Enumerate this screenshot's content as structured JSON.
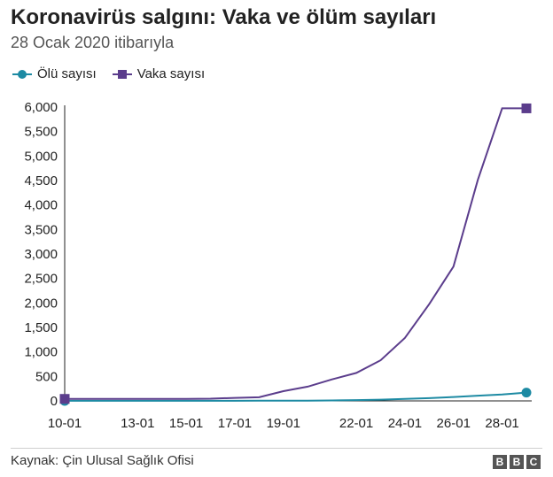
{
  "header": {
    "title": "Koronavirüs salgını: Vaka ve ölüm sayıları",
    "subtitle": "28 Ocak 2020 itibarıyla"
  },
  "footer": {
    "source": "Kaynak: Çin Ulusal Sağlık Ofisi",
    "logo_letters": [
      "B",
      "B",
      "C"
    ]
  },
  "chart_data": {
    "type": "line",
    "title": "Koronavirüs salgını: Vaka ve ölüm sayıları",
    "subtitle": "28 Ocak 2020 itibarıyla",
    "xlabel": "",
    "ylabel": "",
    "legend_position": "top-left",
    "grid": false,
    "x": [
      "10-01",
      "11-01",
      "12-01",
      "13-01",
      "14-01",
      "15-01",
      "16-01",
      "17-01",
      "18-01",
      "19-01",
      "20-01",
      "21-01",
      "22-01",
      "23-01",
      "24-01",
      "25-01",
      "26-01",
      "27-01",
      "28-01",
      "29-01"
    ],
    "x_tick_labels": [
      "10-01",
      "13-01",
      "15-01",
      "17-01",
      "19-01",
      "22-01",
      "24-01",
      "26-01",
      "28-01"
    ],
    "x_tick_positions": [
      "10-01",
      "13-01",
      "15-01",
      "17-01",
      "19-01",
      "22-01",
      "24-01",
      "26-01",
      "28-01"
    ],
    "ylim": [
      0,
      6000
    ],
    "y_ticks": [
      0,
      500,
      1000,
      1500,
      2000,
      2500,
      3000,
      3500,
      4000,
      4500,
      5000,
      5500,
      6000
    ],
    "y_tick_labels": [
      "0",
      "500",
      "1,000",
      "1,500",
      "2,000",
      "2,500",
      "3,000",
      "3,500",
      "4,000",
      "4,500",
      "5,000",
      "5,500",
      "6,000"
    ],
    "series": [
      {
        "name": "Ölü sayısı",
        "color": "#1d8aa3",
        "marker": "circle",
        "values": [
          1,
          1,
          1,
          1,
          1,
          1,
          2,
          2,
          3,
          4,
          6,
          9,
          17,
          25,
          41,
          56,
          80,
          106,
          132,
          170
        ]
      },
      {
        "name": "Vaka sayısı",
        "color": "#5b3d8c",
        "marker": "square",
        "values": [
          41,
          41,
          41,
          41,
          41,
          41,
          45,
          62,
          75,
          198,
          291,
          440,
          571,
          830,
          1287,
          1975,
          2744,
          4515,
          5974,
          5974
        ]
      }
    ]
  }
}
